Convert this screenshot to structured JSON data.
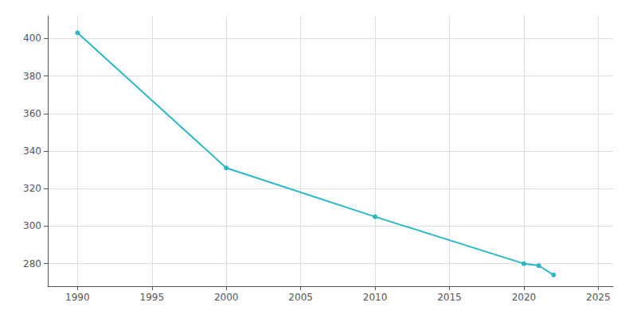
{
  "chart_data": {
    "type": "line",
    "x": [
      1990,
      2000,
      2010,
      2020,
      2021,
      2022
    ],
    "values": [
      403,
      331,
      305,
      280,
      279,
      274
    ],
    "color": "#29B8C4",
    "marker": "circle",
    "xlim": [
      1988,
      2026
    ],
    "ylim": [
      268,
      412
    ],
    "xticks": [
      1990,
      1995,
      2000,
      2005,
      2010,
      2015,
      2020,
      2025
    ],
    "yticks": [
      280,
      300,
      320,
      340,
      360,
      380,
      400
    ],
    "grid": true
  }
}
